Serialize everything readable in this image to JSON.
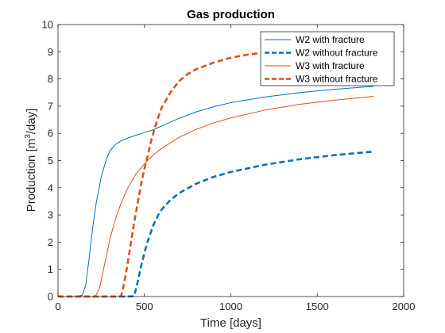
{
  "chart_data": {
    "type": "line",
    "title": "Gas production",
    "xlabel": "Time [days]",
    "ylabel": "Production [m³/day]",
    "ylabel_parts": {
      "before": "Production [m",
      "sup": "3",
      "after": "/day]"
    },
    "xlim": [
      0,
      2000
    ],
    "ylim": [
      0,
      10
    ],
    "xticks": [
      0,
      500,
      1000,
      1500,
      2000
    ],
    "yticks": [
      0,
      1,
      2,
      3,
      4,
      5,
      6,
      7,
      8,
      9,
      10
    ],
    "grid": false,
    "legend_position": "top-right",
    "series": [
      {
        "name": "W2 with fracture",
        "color": "#0072BD",
        "style": "solid",
        "x": [
          0,
          100,
          140,
          160,
          180,
          200,
          220,
          250,
          280,
          300,
          330,
          360,
          400,
          450,
          500,
          550,
          600,
          700,
          800,
          900,
          1000,
          1200,
          1400,
          1600,
          1825
        ],
        "y": [
          0,
          0,
          0.05,
          0.4,
          1.4,
          2.5,
          3.4,
          4.4,
          5.05,
          5.35,
          5.58,
          5.71,
          5.82,
          5.93,
          6.03,
          6.13,
          6.27,
          6.55,
          6.79,
          6.98,
          7.13,
          7.34,
          7.5,
          7.62,
          7.73
        ]
      },
      {
        "name": "W2 without fracture",
        "color": "#0072BD",
        "style": "dashed",
        "x": [
          0,
          400,
          440,
          460,
          480,
          500,
          520,
          550,
          580,
          600,
          650,
          700,
          800,
          900,
          1000,
          1200,
          1400,
          1600,
          1825
        ],
        "y": [
          0,
          0,
          0.01,
          0.5,
          1.1,
          1.6,
          2.05,
          2.6,
          3.0,
          3.2,
          3.55,
          3.8,
          4.15,
          4.4,
          4.58,
          4.85,
          5.05,
          5.2,
          5.33
        ]
      },
      {
        "name": "W3 with fracture",
        "color": "#D95319",
        "style": "solid",
        "x": [
          0,
          200,
          220,
          240,
          260,
          280,
          300,
          330,
          360,
          400,
          450,
          500,
          550,
          600,
          700,
          800,
          900,
          1000,
          1200,
          1400,
          1600,
          1825
        ],
        "y": [
          0,
          0,
          0.05,
          0.3,
          0.9,
          1.5,
          2.1,
          2.8,
          3.35,
          3.95,
          4.5,
          4.88,
          5.2,
          5.45,
          5.85,
          6.15,
          6.38,
          6.57,
          6.86,
          7.07,
          7.22,
          7.36
        ]
      },
      {
        "name": "W3 without fracture",
        "color": "#D95319",
        "style": "dashed",
        "x": [
          0,
          350,
          365,
          380,
          400,
          420,
          440,
          460,
          480,
          500,
          520,
          540,
          560,
          580,
          600,
          650,
          700,
          750,
          800,
          900,
          1000,
          1100,
          1200
        ],
        "y": [
          0,
          0,
          0.02,
          0.4,
          1.1,
          1.9,
          2.7,
          3.4,
          4.1,
          4.7,
          5.2,
          5.75,
          6.2,
          6.6,
          6.95,
          7.5,
          7.92,
          8.18,
          8.36,
          8.6,
          8.78,
          8.9,
          8.97
        ]
      }
    ]
  }
}
